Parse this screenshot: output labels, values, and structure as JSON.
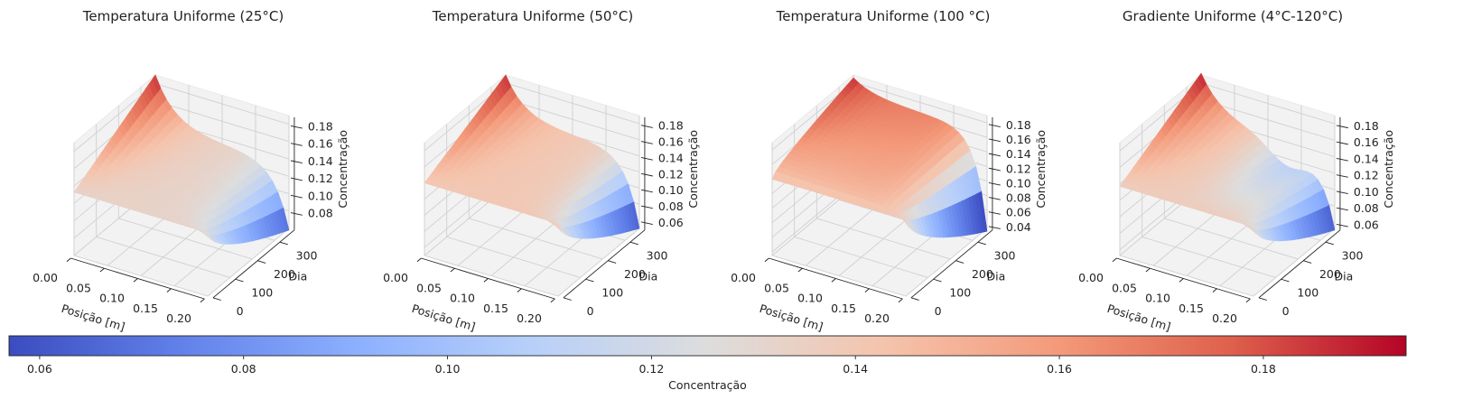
{
  "chart_data": [
    {
      "type": "surface",
      "title": "Temperatura Uniforme (25°C)",
      "xlabel": "Posição [m]",
      "ylabel": "Dia",
      "zlabel": "Concentração",
      "xlim": [
        0,
        0.2
      ],
      "ylim": [
        0,
        365
      ],
      "zlim": [
        0.06,
        0.19
      ],
      "xticks": [
        "0.00",
        "0.05",
        "0.10",
        "0.15",
        "0.20"
      ],
      "yticks": [
        "0",
        "100",
        "200",
        "300"
      ],
      "zticks": [
        "0.08",
        "0.10",
        "0.12",
        "0.14",
        "0.16",
        "0.18"
      ],
      "colormap": "coolwarm"
    },
    {
      "type": "surface",
      "title": "Temperatura Uniforme (50°C)",
      "xlabel": "Posição [m]",
      "ylabel": "Dia",
      "zlabel": "Concentração",
      "xlim": [
        0,
        0.2
      ],
      "ylim": [
        0,
        365
      ],
      "zlim": [
        0.05,
        0.19
      ],
      "xticks": [
        "0.00",
        "0.05",
        "0.10",
        "0.15",
        "0.20"
      ],
      "yticks": [
        "0",
        "100",
        "200",
        "300"
      ],
      "zticks": [
        "0.06",
        "0.08",
        "0.10",
        "0.12",
        "0.14",
        "0.16",
        "0.18"
      ],
      "colormap": "coolwarm"
    },
    {
      "type": "surface",
      "title": "Temperatura Uniforme (100 °C)",
      "xlabel": "Posição [m]",
      "ylabel": "Dia",
      "zlabel": "Concentração",
      "xlim": [
        0,
        0.2
      ],
      "ylim": [
        0,
        365
      ],
      "zlim": [
        0.035,
        0.19
      ],
      "xticks": [
        "0.00",
        "0.05",
        "0.10",
        "0.15",
        "0.20"
      ],
      "yticks": [
        "0",
        "100",
        "200",
        "300"
      ],
      "zticks": [
        "0.04",
        "0.06",
        "0.08",
        "0.10",
        "0.12",
        "0.14",
        "0.16",
        "0.18"
      ],
      "colormap": "coolwarm"
    },
    {
      "type": "surface",
      "title": "Gradiente Uniforme (4°C-120°C)",
      "xlabel": "Posição [m]",
      "ylabel": "Dia",
      "zlabel": "Concentração",
      "xlim": [
        0,
        0.2
      ],
      "ylim": [
        0,
        365
      ],
      "zlim": [
        0.053,
        0.19
      ],
      "xticks": [
        "0.00",
        "0.05",
        "0.10",
        "0.15",
        "0.20"
      ],
      "yticks": [
        "0",
        "100",
        "200",
        "300"
      ],
      "zticks": [
        "0.06",
        "0.08",
        "0.10",
        "0.12",
        "0.14",
        "0.16",
        "0.18"
      ],
      "colormap": "coolwarm"
    }
  ],
  "colorbar": {
    "label": "Concentração",
    "range": [
      0.057,
      0.194
    ],
    "ticks": [
      "0.06",
      "0.08",
      "0.10",
      "0.12",
      "0.14",
      "0.16",
      "0.18"
    ],
    "colors": [
      "#3b4cc0",
      "#6282ea",
      "#8db0fe",
      "#b8d0f9",
      "#dddddd",
      "#f5c4ad",
      "#f49a7b",
      "#de604d",
      "#b40426"
    ]
  }
}
